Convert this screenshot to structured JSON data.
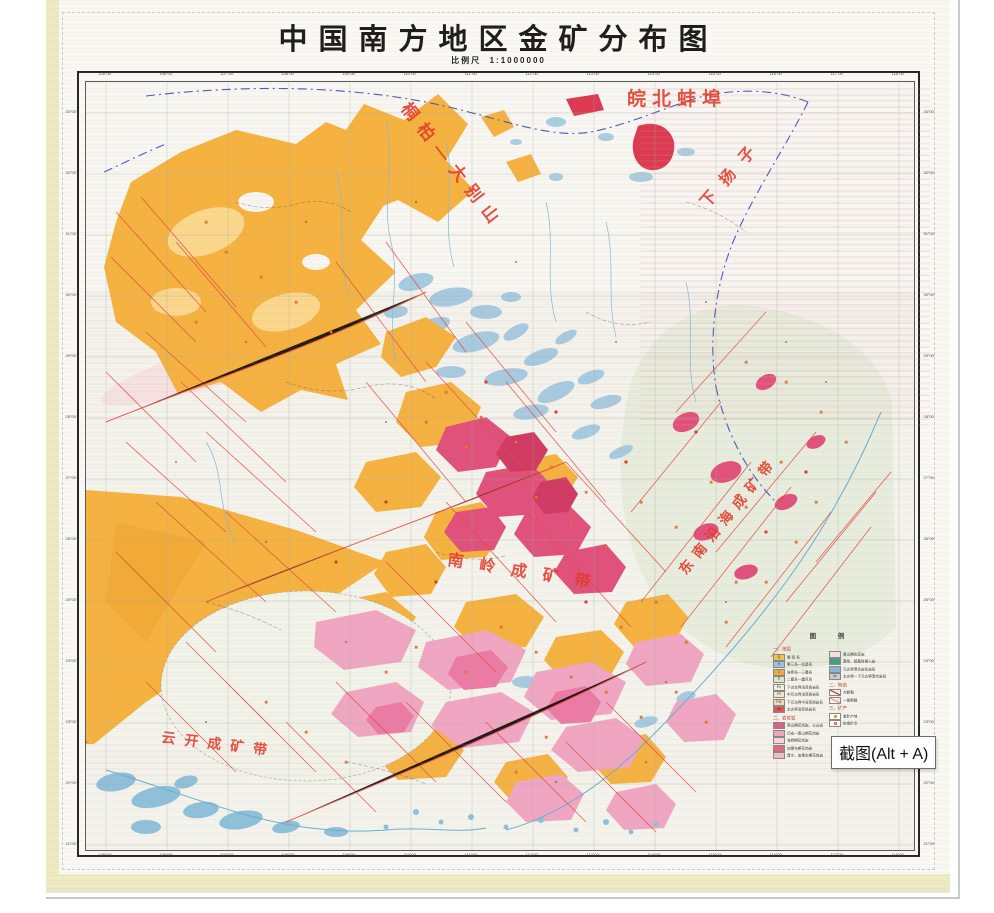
{
  "page": {
    "title": "中国南方地区金矿分布图",
    "scale_label": "比例尺",
    "scale_value": "1:1000000"
  },
  "tooltip": {
    "text": "截图(Alt + A)"
  },
  "map_labels": {
    "wanbei": "皖北蚌埠",
    "tongbai": "桐柏—大别山",
    "xiayangzi": "下扬子",
    "nanling": "南岭成矿带",
    "coastal": "东南沿海成矿带",
    "yunkai": "云开成矿带"
  },
  "colors": {
    "label_red": "#e23b2c",
    "fault_red": "#e14a3d",
    "boundary_blue": "#4a58b8",
    "quaternary_yellow": "#f5b23f",
    "granite_pink": "#f0a6c1",
    "volcanic_crimson": "#e0517c",
    "water_blue": "#a6cadf",
    "metamorphic_green": "#e7ecdc"
  },
  "legend": {
    "title": "图 例",
    "left": {
      "header_strata": "一、地层",
      "strata_rows": [
        {
          "color": "#f2c545",
          "code": "Q",
          "label": "第 四 系"
        },
        {
          "color": "#9fc0dc",
          "code": "K",
          "label": "第三系—白垩系"
        },
        {
          "color": "#f2a844",
          "code": "J",
          "label": "侏罗系—三叠系"
        },
        {
          "color": "#d9e7c4",
          "code": "P",
          "label": "二叠系—震旦系"
        },
        {
          "color": "#f3ecd6",
          "code": "Pz",
          "label": "下古生界浅变质岩系"
        },
        {
          "color": "#efe5c9",
          "code": "Pt",
          "label": "中元古界浅变质岩系"
        },
        {
          "color": "#eddbb9",
          "code": "Pt1",
          "label": "下元古界中深变质岩系"
        },
        {
          "color": "#e25555",
          "code": "Ar",
          "label": "太古界深变质岩系"
        }
      ],
      "header_magmatic": "二、岩浆岩",
      "magmatic_rows": [
        {
          "color": "#d9608a",
          "label": "燕山期花岗岩、火山岩"
        },
        {
          "color": "#f2a3bb",
          "label": "印支—燕山期花岗岩"
        },
        {
          "color": "#f8d3da",
          "label": "海西期花岗岩"
        },
        {
          "color": "#e4697c",
          "label": "加里东期花岗岩"
        },
        {
          "color": "#f3b9cb",
          "label": "晋宁、加里东期花岗岩"
        }
      ]
    },
    "right": {
      "strata_rows": [
        {
          "color": "#f6dde2",
          "label": "喜山期玄武岩"
        },
        {
          "color": "#3fa183",
          "label": "基性、超基性侵入岩"
        },
        {
          "color": "#8fb4d6",
          "label": "元古界混合岩化岩系"
        },
        {
          "color": "#c6cdd4",
          "code": "Ar",
          "label": "太古界—下元古界混合岩系"
        }
      ],
      "header_structure": "二、构造",
      "structure_rows": [
        {
          "symbol": "fault-major",
          "label": "大断裂"
        },
        {
          "symbol": "fault-minor",
          "label": "一般断裂"
        }
      ],
      "header_minerals": "三、矿产",
      "mineral_rows": [
        {
          "symbol": "gold-deposit",
          "label": "金矿产地"
        },
        {
          "symbol": "gold-occurrence",
          "label": "砂金矿点"
        }
      ]
    }
  },
  "graticule": {
    "lon_labels": [
      "105°00′",
      "106°00′",
      "107°00′",
      "108°00′",
      "109°00′",
      "110°00′",
      "111°00′",
      "112°00′",
      "113°00′",
      "114°00′",
      "115°00′",
      "116°00′",
      "117°00′",
      "118°00′"
    ],
    "lat_labels": [
      "33°00′",
      "32°00′",
      "31°00′",
      "30°00′",
      "29°00′",
      "28°00′",
      "27°00′",
      "26°00′",
      "25°00′",
      "24°00′",
      "23°00′",
      "22°00′",
      "21°00′"
    ]
  }
}
